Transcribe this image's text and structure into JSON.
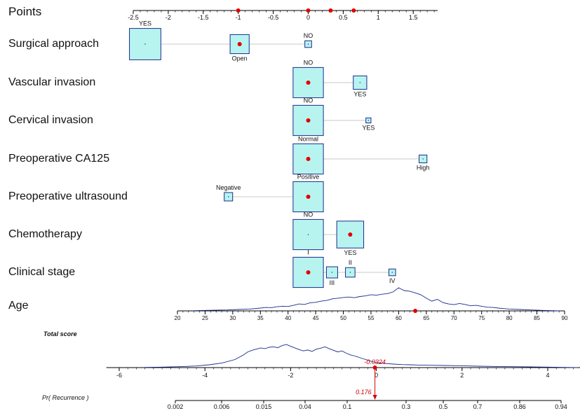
{
  "chart_data": {
    "type": "nomogram",
    "points_axis": {
      "label": "Points",
      "min": -2.5,
      "max": 1.85,
      "ticks": [
        -2.5,
        -2,
        -1.5,
        -1,
        -0.5,
        0,
        0.5,
        1,
        1.5
      ],
      "tick_labels": [
        "-2.5",
        "-2",
        "-1.5",
        "-1",
        "-0.5",
        "0",
        "0.5",
        "1",
        "1.5"
      ],
      "minor_step": 0.1,
      "markers": [
        -1,
        0,
        0.32,
        0.65
      ]
    },
    "variables": [
      {
        "name": "Surgical approach",
        "levels": [
          {
            "label": "YES",
            "points": -2.33,
            "size": 2.8,
            "label_pos": "above",
            "selected": false
          },
          {
            "label": "Open",
            "points": -0.98,
            "size": 1.7,
            "label_pos": "below",
            "selected": true
          },
          {
            "label": "NO",
            "points": 0.0,
            "size": 0.6,
            "label_pos": "above",
            "selected": false
          }
        ]
      },
      {
        "name": "Vascular invasion",
        "levels": [
          {
            "label": "NO",
            "points": 0.0,
            "size": 2.7,
            "label_pos": "above",
            "selected": true
          },
          {
            "label": "YES",
            "points": 0.74,
            "size": 1.2,
            "label_pos": "below",
            "selected": false
          }
        ]
      },
      {
        "name": "Cervical invasion",
        "levels": [
          {
            "label": "NO",
            "points": 0.0,
            "size": 2.7,
            "label_pos": "above",
            "selected": true
          },
          {
            "label": "YES",
            "points": 0.86,
            "size": 0.45,
            "label_pos": "below",
            "selected": false
          }
        ]
      },
      {
        "name": "Preoperative CA125",
        "levels": [
          {
            "label": "Normal",
            "points": 0.0,
            "size": 2.7,
            "label_pos": "above",
            "selected": true
          },
          {
            "label": "High",
            "points": 1.64,
            "size": 0.7,
            "label_pos": "below",
            "selected": false
          }
        ]
      },
      {
        "name": "Preoperative ultrasound",
        "levels": [
          {
            "label": "Negative",
            "points": -1.14,
            "size": 0.75,
            "label_pos": "above",
            "selected": false
          },
          {
            "label": "Positive",
            "points": 0.0,
            "size": 2.7,
            "label_pos": "above",
            "selected": true
          }
        ]
      },
      {
        "name": "Chemotherapy",
        "levels": [
          {
            "label": "NO",
            "points": 0.0,
            "size": 2.7,
            "label_pos": "above",
            "selected": false
          },
          {
            "label": "YES",
            "points": 0.6,
            "size": 2.4,
            "label_pos": "below",
            "selected": true
          }
        ]
      },
      {
        "name": "Clinical stage",
        "levels": [
          {
            "label": "I",
            "points": 0.0,
            "size": 2.7,
            "label_pos": "above",
            "selected": true
          },
          {
            "label": "III",
            "points": 0.34,
            "size": 1.0,
            "label_pos": "below",
            "selected": false
          },
          {
            "label": "II",
            "points": 0.6,
            "size": 0.85,
            "label_pos": "above",
            "selected": false
          },
          {
            "label": "IV",
            "points": 1.2,
            "size": 0.6,
            "label_pos": "below",
            "selected": false
          }
        ]
      }
    ],
    "age": {
      "name": "Age",
      "min": 20,
      "max": 90,
      "ticks": [
        20,
        25,
        30,
        35,
        40,
        45,
        50,
        55,
        60,
        65,
        70,
        75,
        80,
        85,
        90
      ],
      "tick_labels": [
        "20",
        "25",
        "30",
        "35",
        "40",
        "45",
        "50",
        "55",
        "60",
        "65",
        "70",
        "75",
        "80",
        "85",
        "90"
      ],
      "selected": 63,
      "density_x": [
        23,
        25,
        27,
        29,
        31,
        33,
        35,
        36,
        37,
        38,
        39,
        40,
        41,
        42,
        43,
        44,
        45,
        46,
        47,
        48,
        49,
        50,
        51,
        52,
        53,
        54,
        55,
        56,
        57,
        58,
        59,
        60,
        61,
        62,
        63,
        64,
        65,
        66,
        67,
        68,
        69,
        70,
        71,
        72,
        73,
        74,
        75,
        76,
        77,
        78,
        79,
        80,
        82,
        84,
        86,
        88,
        89
      ],
      "density_y": [
        0.01,
        0.02,
        0.03,
        0.04,
        0.06,
        0.08,
        0.12,
        0.15,
        0.14,
        0.18,
        0.2,
        0.19,
        0.24,
        0.3,
        0.28,
        0.35,
        0.37,
        0.42,
        0.45,
        0.52,
        0.55,
        0.58,
        0.6,
        0.57,
        0.62,
        0.65,
        0.7,
        0.68,
        0.72,
        0.75,
        0.82,
        1.0,
        0.88,
        0.85,
        0.78,
        0.7,
        0.55,
        0.42,
        0.5,
        0.36,
        0.3,
        0.27,
        0.32,
        0.28,
        0.22,
        0.24,
        0.2,
        0.16,
        0.15,
        0.12,
        0.1,
        0.08,
        0.06,
        0.04,
        0.02,
        0.01,
        0.0
      ]
    },
    "total_score": {
      "label": "Total score",
      "min": -6.3,
      "max": 4.8,
      "ticks": [
        -6,
        -4,
        -2,
        0,
        2,
        4
      ],
      "tick_labels": [
        "-6",
        "-4",
        "-2",
        "0",
        "2",
        "4"
      ],
      "minor_step": 0.2,
      "selected": -0.0324,
      "selected_label": "-0.0324",
      "density_x": [
        -5.4,
        -5.0,
        -4.6,
        -4.2,
        -3.9,
        -3.6,
        -3.3,
        -3.1,
        -3.0,
        -2.9,
        -2.8,
        -2.7,
        -2.6,
        -2.5,
        -2.4,
        -2.3,
        -2.2,
        -2.1,
        -2.0,
        -1.9,
        -1.8,
        -1.7,
        -1.6,
        -1.5,
        -1.4,
        -1.3,
        -1.2,
        -1.1,
        -1.0,
        -0.9,
        -0.8,
        -0.7,
        -0.6,
        -0.5,
        -0.4,
        -0.3,
        -0.2,
        -0.1,
        0.0,
        0.2,
        0.4,
        0.6,
        0.8,
        1.0,
        1.3,
        1.6,
        2.0,
        2.4,
        2.8,
        3.2,
        3.6,
        4.0,
        4.4,
        4.7
      ],
      "density_y": [
        0.01,
        0.02,
        0.04,
        0.07,
        0.12,
        0.2,
        0.35,
        0.55,
        0.68,
        0.75,
        0.8,
        0.85,
        0.82,
        0.88,
        0.9,
        0.86,
        0.95,
        1.0,
        0.92,
        0.85,
        0.78,
        0.72,
        0.76,
        0.7,
        0.8,
        0.84,
        0.9,
        0.82,
        0.75,
        0.68,
        0.72,
        0.62,
        0.55,
        0.5,
        0.44,
        0.38,
        0.32,
        0.26,
        0.22,
        0.18,
        0.15,
        0.13,
        0.12,
        0.11,
        0.1,
        0.09,
        0.08,
        0.06,
        0.05,
        0.04,
        0.03,
        0.02,
        0.01,
        0.0
      ]
    },
    "probability": {
      "label": "Pr( Recurrence )",
      "ticks": [
        0.002,
        0.006,
        0.015,
        0.04,
        0.1,
        0.3,
        0.5,
        0.7,
        0.86,
        0.94
      ],
      "tick_labels": [
        "0.002",
        "0.006",
        "0.015",
        "0.04",
        "0.1",
        "0.3",
        "0.5",
        "0.7",
        "0.86",
        "0.94"
      ],
      "selected": 0.176,
      "selected_label": "0.176"
    }
  }
}
